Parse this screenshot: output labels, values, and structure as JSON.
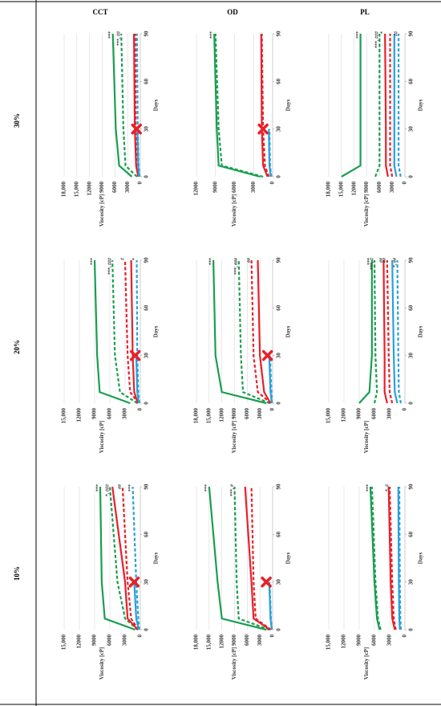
{
  "headers": {
    "columns": [
      "CCT",
      "OD",
      "PL"
    ],
    "rows": [
      "10%",
      "20%",
      "30%"
    ]
  },
  "chart_data": [
    {
      "type": "line",
      "xlabel": "Days",
      "ylabel": "Viscosity [cP]",
      "x": [
        0,
        7,
        30,
        90
      ],
      "xlim": [
        0,
        90
      ],
      "xticks": [
        0,
        30,
        60,
        90
      ],
      "ylim": [
        0,
        15000
      ],
      "yticks": [
        0,
        3000,
        6000,
        9000,
        12000,
        {
          "value": 15000,
          "label": "15,000"
        }
      ],
      "grid": true,
      "phase_separation": {
        "x": 30,
        "y": 1200
      },
      "series": [
        {
          "color": "#1a9e50",
          "style": "solid",
          "values": [
            1000,
            7000,
            7600,
            7900
          ],
          "end_label": "***"
        },
        {
          "color": "#1a9e50",
          "style": "dashed",
          "values": [
            500,
            3000,
            4500,
            6000
          ],
          "end_label": "*, ###"
        },
        {
          "color": "#e8202a",
          "style": "solid",
          "values": [
            500,
            2500,
            3000,
            5500
          ]
        },
        {
          "color": "#e8202a",
          "style": "dashed",
          "values": [
            400,
            1800,
            2500,
            3500
          ],
          "end_label": "##"
        },
        {
          "color": "#2aa0d8",
          "style": "solid",
          "values": [
            300,
            800,
            1200,
            null
          ]
        },
        {
          "color": "#2aa0d8",
          "style": "dashed",
          "values": [
            200,
            400,
            800,
            1500
          ],
          "end_label": "***"
        }
      ]
    },
    {
      "type": "line",
      "xlabel": "Days",
      "ylabel": "Viscosity [cP]",
      "x": [
        0,
        7,
        30,
        90
      ],
      "xlim": [
        0,
        90
      ],
      "xticks": [
        0,
        30,
        60,
        90
      ],
      "ylim": [
        0,
        15000
      ],
      "yticks": [
        0,
        3000,
        6000,
        9000,
        12000,
        {
          "value": 15000,
          "label": "15,000"
        }
      ],
      "grid": true,
      "phase_separation": {
        "x": 30,
        "y": 1000
      },
      "series": [
        {
          "color": "#1a9e50",
          "style": "solid",
          "values": [
            2000,
            8000,
            8500,
            9000
          ],
          "end_label": "***"
        },
        {
          "color": "#1a9e50",
          "style": "dashed",
          "values": [
            600,
            4000,
            5000,
            5500
          ],
          "end_label": "***, ###"
        },
        {
          "color": "#e8202a",
          "style": "solid",
          "values": [
            500,
            1200,
            1500,
            1800
          ]
        },
        {
          "color": "#e8202a",
          "style": "dashed",
          "values": [
            400,
            2000,
            2500,
            3000
          ],
          "end_label": "#"
        },
        {
          "color": "#2aa0d8",
          "style": "solid",
          "values": [
            300,
            600,
            800,
            null
          ]
        },
        {
          "color": "#2aa0d8",
          "style": "dashed",
          "values": [
            200,
            400,
            600,
            700
          ],
          "end_label": "*"
        }
      ]
    },
    {
      "type": "line",
      "xlabel": "Days",
      "ylabel": "Viscosity [cP]",
      "x": [
        0,
        7,
        30,
        90
      ],
      "xlim": [
        0,
        90
      ],
      "xticks": [
        0,
        30,
        60,
        90
      ],
      "ylim": [
        0,
        18000
      ],
      "yticks": [
        0,
        3000,
        6000,
        9000,
        12000,
        {
          "value": 15000,
          "label": "15,000"
        },
        {
          "value": 18000,
          "label": "18,000"
        }
      ],
      "grid": true,
      "phase_separation": {
        "x": 30,
        "y": 900
      },
      "series": [
        {
          "color": "#1a9e50",
          "style": "solid",
          "values": [
            2000,
            5000,
            5800,
            6500
          ],
          "end_label": "***"
        },
        {
          "color": "#1a9e50",
          "style": "dashed",
          "values": [
            800,
            3500,
            4000,
            4500
          ],
          "end_label": "***, ##"
        },
        {
          "color": "#e8202a",
          "style": "solid",
          "values": [
            500,
            1000,
            1300,
            1500
          ]
        },
        {
          "color": "#e8202a",
          "style": "dashed",
          "values": [
            400,
            900,
            1100,
            1200
          ]
        },
        {
          "color": "#2aa0d8",
          "style": "solid",
          "values": [
            300,
            500,
            700,
            null
          ]
        },
        {
          "color": "#2aa0d8",
          "style": "dashed",
          "values": [
            200,
            400,
            600,
            800
          ]
        }
      ]
    },
    {
      "type": "line",
      "xlabel": "Days",
      "ylabel": "Viscosity [cP]",
      "x": [
        0,
        7,
        30,
        90
      ],
      "xlim": [
        0,
        90
      ],
      "xticks": [
        0,
        30,
        60,
        90
      ],
      "ylim": [
        0,
        18000
      ],
      "yticks": [
        0,
        3000,
        6000,
        9000,
        12000,
        {
          "value": 15000,
          "label": "15,000"
        },
        {
          "value": 18000,
          "label": "18,000"
        }
      ],
      "grid": true,
      "phase_separation": {
        "x": 30,
        "y": 1500
      },
      "series": [
        {
          "color": "#1a9e50",
          "style": "solid",
          "values": [
            1500,
            12000,
            13000,
            15000
          ],
          "end_label": "***"
        },
        {
          "color": "#1a9e50",
          "style": "dashed",
          "values": [
            800,
            8000,
            8500,
            9000
          ],
          "end_label": "***, #"
        },
        {
          "color": "#e8202a",
          "style": "solid",
          "values": [
            600,
            4500,
            5000,
            6500
          ]
        },
        {
          "color": "#e8202a",
          "style": "dashed",
          "values": [
            400,
            4000,
            4500,
            5000
          ]
        },
        {
          "color": "#2aa0d8",
          "style": "solid",
          "values": [
            200,
            500,
            800,
            null
          ]
        },
        {
          "color": "#2aa0d8",
          "style": "dashed",
          "values": [
            200,
            400,
            700,
            null
          ]
        }
      ]
    },
    {
      "type": "line",
      "xlabel": "Days",
      "ylabel": "Viscosity [cP]",
      "x": [
        0,
        7,
        30,
        90
      ],
      "xlim": [
        0,
        90
      ],
      "xticks": [
        0,
        30,
        60,
        90
      ],
      "ylim": [
        0,
        18000
      ],
      "yticks": [
        0,
        3000,
        6000,
        9000,
        12000,
        {
          "value": 15000,
          "label": "15,000"
        },
        {
          "value": 18000,
          "label": "18,000"
        }
      ],
      "grid": true,
      "phase_separation": {
        "x": 30,
        "y": 1200
      },
      "series": [
        {
          "color": "#1a9e50",
          "style": "solid",
          "values": [
            1500,
            12000,
            13500,
            14000
          ],
          "end_label": "***"
        },
        {
          "color": "#1a9e50",
          "style": "dashed",
          "values": [
            700,
            7000,
            7500,
            8000
          ],
          "end_label": "***, ###"
        },
        {
          "color": "#e8202a",
          "style": "solid",
          "values": [
            500,
            2000,
            3000,
            3500
          ]
        },
        {
          "color": "#e8202a",
          "style": "dashed",
          "values": [
            400,
            3500,
            4500,
            5000
          ],
          "end_label": "##"
        },
        {
          "color": "#2aa0d8",
          "style": "solid",
          "values": [
            200,
            500,
            800,
            null
          ]
        },
        {
          "color": "#2aa0d8",
          "style": "dashed",
          "values": [
            150,
            300,
            600,
            null
          ]
        }
      ]
    },
    {
      "type": "line",
      "xlabel": "Days",
      "ylabel": "Viscosity [cP]",
      "x": [
        0,
        7,
        30,
        90
      ],
      "xlim": [
        0,
        90
      ],
      "xticks": [
        0,
        30,
        60,
        90
      ],
      "ylim": [
        0,
        12000
      ],
      "yticks": [
        0,
        3000,
        6000,
        9000,
        12000
      ],
      "grid": true,
      "phase_separation": {
        "x": 30,
        "y": 1500
      },
      "series": [
        {
          "color": "#1a9e50",
          "style": "solid",
          "values": [
            2000,
            8500,
            8800,
            9200
          ],
          "end_label": "***"
        },
        {
          "color": "#1a9e50",
          "style": "dashed",
          "values": [
            1500,
            8000,
            8500,
            9000
          ]
        },
        {
          "color": "#e8202a",
          "style": "solid",
          "values": [
            800,
            1500,
            1700,
            1800
          ]
        },
        {
          "color": "#e8202a",
          "style": "dashed",
          "values": [
            600,
            1200,
            1500,
            1700
          ]
        },
        {
          "color": "#2aa0d8",
          "style": "solid",
          "values": [
            300,
            500,
            600,
            null
          ]
        },
        {
          "color": "#2aa0d8",
          "style": "dashed",
          "values": [
            200,
            400,
            500,
            null
          ]
        }
      ]
    },
    {
      "type": "line",
      "xlabel": "Days",
      "ylabel": "Viscosity [cP]",
      "x": [
        0,
        7,
        30,
        90
      ],
      "xlim": [
        0,
        90
      ],
      "xticks": [
        0,
        30,
        60,
        90
      ],
      "ylim": [
        0,
        15000
      ],
      "yticks": [
        0,
        3000,
        6000,
        9000,
        12000,
        {
          "value": 15000,
          "label": "15,000"
        }
      ],
      "grid": true,
      "series": [
        {
          "color": "#1a9e50",
          "style": "solid",
          "values": [
            5000,
            5500,
            6000,
            6800
          ],
          "end_label": "***"
        },
        {
          "color": "#1a9e50",
          "style": "dashed",
          "values": [
            4800,
            5300,
            5800,
            6500
          ]
        },
        {
          "color": "#e8202a",
          "style": "solid",
          "values": [
            2000,
            2500,
            2800,
            3200
          ]
        },
        {
          "color": "#e8202a",
          "style": "dashed",
          "values": [
            1800,
            2200,
            2500,
            3000
          ],
          "end_label": "*, #"
        },
        {
          "color": "#2aa0d8",
          "style": "solid",
          "values": [
            1000,
            1100,
            1200,
            1300
          ]
        },
        {
          "color": "#2aa0d8",
          "style": "dashed",
          "values": [
            800,
            900,
            1000,
            1100
          ]
        }
      ]
    },
    {
      "type": "line",
      "xlabel": "Days",
      "ylabel": "Viscosity [cP]",
      "x": [
        0,
        7,
        30,
        90
      ],
      "xlim": [
        0,
        90
      ],
      "xticks": [
        0,
        30,
        60,
        90
      ],
      "ylim": [
        0,
        15000
      ],
      "yticks": [
        0,
        3000,
        6000,
        9000,
        12000,
        {
          "value": 15000,
          "label": "15,000"
        }
      ],
      "grid": true,
      "series": [
        {
          "color": "#1a9e50",
          "style": "solid",
          "values": [
            9000,
            7000,
            6500,
            6500
          ],
          "end_label": "***"
        },
        {
          "color": "#1a9e50",
          "style": "dashed",
          "values": [
            6000,
            5500,
            5800,
            6000
          ],
          "end_label": "***, #"
        },
        {
          "color": "#e8202a",
          "style": "solid",
          "values": [
            3500,
            4000,
            4000,
            4200
          ],
          "end_label": "##"
        },
        {
          "color": "#e8202a",
          "style": "dashed",
          "values": [
            2500,
            3000,
            3200,
            3500
          ],
          "end_label": "##"
        },
        {
          "color": "#2aa0d8",
          "style": "solid",
          "values": [
            1500,
            2000,
            2200,
            2500
          ]
        },
        {
          "color": "#2aa0d8",
          "style": "dashed",
          "values": [
            800,
            1200,
            1300,
            1500
          ],
          "end_label": "*, ##"
        }
      ]
    },
    {
      "type": "line",
      "xlabel": "Days",
      "ylabel": "Viscosity [cP]",
      "x": [
        0,
        7,
        30,
        90
      ],
      "xlim": [
        0,
        90
      ],
      "xticks": [
        0,
        30,
        60,
        90
      ],
      "ylim": [
        0,
        18000
      ],
      "yticks": [
        0,
        3000,
        6000,
        9000,
        12000,
        {
          "value": 15000,
          "label": "15,000"
        },
        {
          "value": 18000,
          "label": "18,000"
        }
      ],
      "grid": true,
      "series": [
        {
          "color": "#1a9e50",
          "style": "solid",
          "values": [
            15000,
            10500,
            10500,
            10500
          ],
          "end_label": "***"
        },
        {
          "color": "#1a9e50",
          "style": "dashed",
          "values": [
            7000,
            6000,
            6000,
            6000
          ],
          "end_label": "***, ###"
        },
        {
          "color": "#e8202a",
          "style": "solid",
          "values": [
            4000,
            4500,
            4500,
            4700
          ],
          "end_label": "*"
        },
        {
          "color": "#e8202a",
          "style": "dashed",
          "values": [
            3000,
            3500,
            3500,
            3500
          ]
        },
        {
          "color": "#2aa0d8",
          "style": "solid",
          "values": [
            2000,
            2500,
            2500,
            2500
          ]
        },
        {
          "color": "#2aa0d8",
          "style": "dashed",
          "values": [
            1000,
            1500,
            1500,
            1500
          ],
          "end_label": "##"
        }
      ]
    }
  ]
}
